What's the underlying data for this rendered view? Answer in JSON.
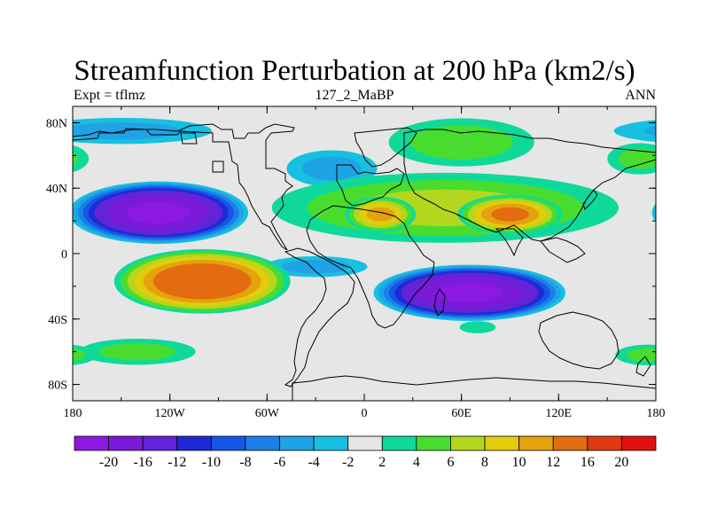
{
  "title": "Streamfunction Perturbation at 200 hPa (km2/s)",
  "left_label": "Expt = tflmz",
  "center_label": "127_2_MaBP",
  "right_label": "ANN",
  "map": {
    "lon_range": [
      -180,
      180
    ],
    "lat_range": [
      -90,
      90
    ],
    "background_color": "#e6e6e6",
    "lat_ticks": [
      {
        "value": 80,
        "label": "80N"
      },
      {
        "value": 40,
        "label": "40N"
      },
      {
        "value": 0,
        "label": "0"
      },
      {
        "value": -40,
        "label": "40S"
      },
      {
        "value": -80,
        "label": "80S"
      }
    ],
    "lon_ticks": [
      {
        "value": -180,
        "label": "180"
      },
      {
        "value": -120,
        "label": "120W"
      },
      {
        "value": -60,
        "label": "60W"
      },
      {
        "value": 0,
        "label": "0"
      },
      {
        "value": 60,
        "label": "60E"
      },
      {
        "value": 120,
        "label": "120E"
      },
      {
        "value": 180,
        "label": "180"
      }
    ],
    "features": [
      {
        "name": "north-pacific-low",
        "lon": -127,
        "lat": 25,
        "rx": 58,
        "ry": 20,
        "amplitude": -21
      },
      {
        "name": "south-pacific-high",
        "lon": -100,
        "lat": -17,
        "rx": 58,
        "ry": 21,
        "amplitude": 15
      },
      {
        "name": "south-indian-low",
        "lon": 65,
        "lat": -24,
        "rx": 62,
        "ry": 18,
        "amplitude": -21
      },
      {
        "name": "asian-high",
        "lon": 90,
        "lat": 24,
        "rx": 35,
        "ry": 13,
        "amplitude": 12
      },
      {
        "name": "north-africa-high",
        "lon": 10,
        "lat": 24,
        "rx": 24,
        "ry": 12,
        "amplitude": 10
      },
      {
        "name": "north-atlantic-africa-high",
        "lon": 50,
        "lat": 28,
        "rx": 125,
        "ry": 25,
        "amplitude": 6
      },
      {
        "name": "arctic-asia-high",
        "lon": 60,
        "lat": 68,
        "rx": 55,
        "ry": 18,
        "amplitude": 4.5
      },
      {
        "name": "east-pacific-high",
        "lon": 170,
        "lat": 58,
        "rx": 25,
        "ry": 12,
        "amplitude": 4
      },
      {
        "name": "north-pacific-arctic-low",
        "lon": -150,
        "lat": 75,
        "rx": 70,
        "ry": 10,
        "amplitude": -4
      },
      {
        "name": "europe-low",
        "lon": -20,
        "lat": 52,
        "rx": 35,
        "ry": 14,
        "amplitude": -4
      },
      {
        "name": "south-atlantic-low",
        "lon": -30,
        "lat": -8,
        "rx": 40,
        "ry": 8,
        "amplitude": -4
      },
      {
        "name": "southern-ocean-high-west",
        "lon": -140,
        "lat": -60,
        "rx": 45,
        "ry": 10,
        "amplitude": 4
      },
      {
        "name": "southern-ocean-high-east",
        "lon": 175,
        "lat": -62,
        "rx": 25,
        "ry": 8,
        "amplitude": 4
      },
      {
        "name": "antarctic-indian-high",
        "lon": 70,
        "lat": -45,
        "rx": 15,
        "ry": 5,
        "amplitude": 3
      }
    ],
    "coastline_note": "continent outlines drawn as simplified polygons"
  },
  "colorbar": {
    "colors": [
      "#8c19e3",
      "#7a1ad8",
      "#6423d6",
      "#1e2bd4",
      "#1456e6",
      "#1c7fe8",
      "#1fa3e6",
      "#17c0e0",
      "#e6e6e6",
      "#0fd99a",
      "#48dd2e",
      "#b4d61e",
      "#e3cc0c",
      "#e3a20e",
      "#e36c10",
      "#e03a12",
      "#e0120f"
    ],
    "labels": [
      "-20",
      "-16",
      "-12",
      "-10",
      "-8",
      "-6",
      "-4",
      "-2",
      "2",
      "4",
      "6",
      "8",
      "10",
      "12",
      "16",
      "20"
    ],
    "levels": [
      -20,
      -16,
      -12,
      -10,
      -8,
      -6,
      -4,
      -2,
      2,
      4,
      6,
      8,
      10,
      12,
      16,
      20
    ]
  }
}
